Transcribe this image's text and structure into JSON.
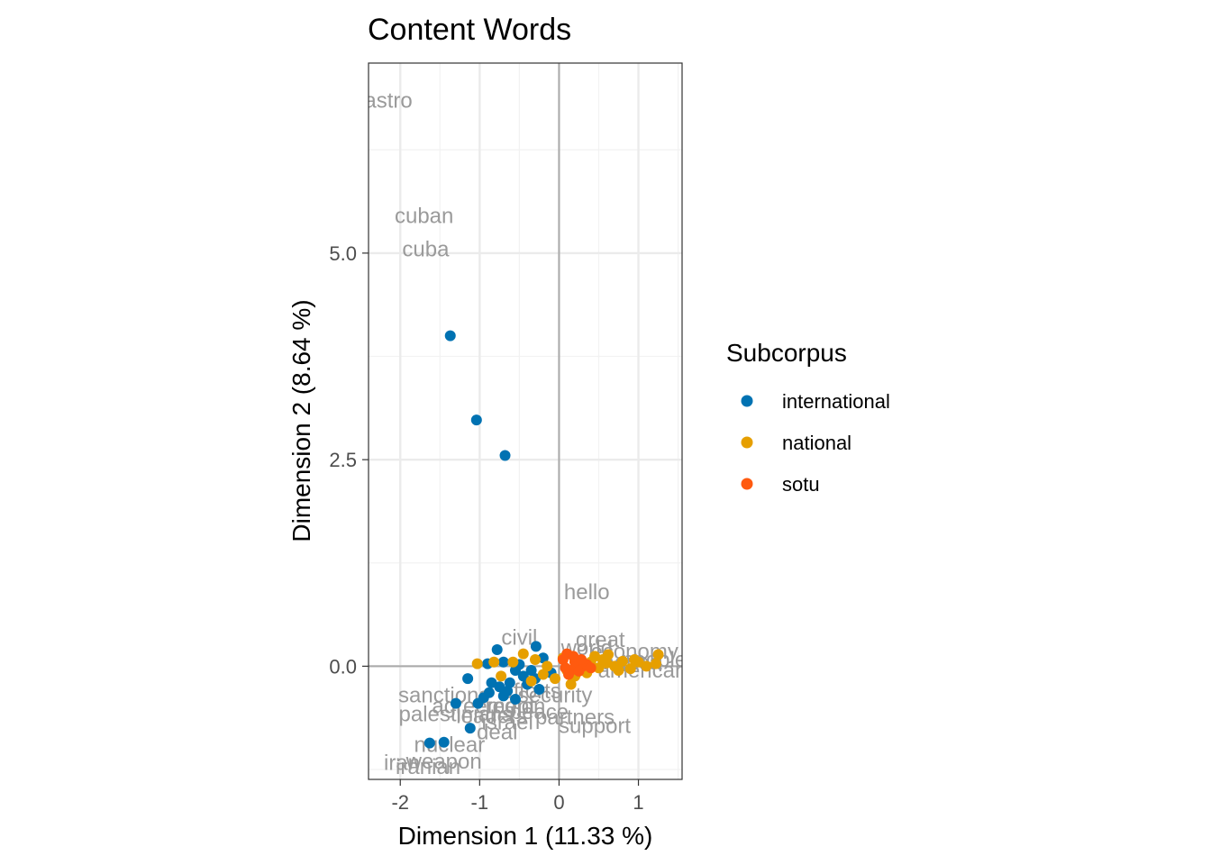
{
  "chart_data": {
    "type": "scatter",
    "title": "Content Words",
    "xlabel": "Dimension 1 (11.33 %)",
    "ylabel": "Dimension 2 (8.64 %)",
    "xlim": [
      -2.4,
      1.55
    ],
    "ylim": [
      -1.37,
      7.3
    ],
    "x_ticks": [
      -2,
      -1,
      0,
      1
    ],
    "x_tick_labels": [
      "-2",
      "-1",
      "0",
      "1"
    ],
    "y_ticks": [
      0.0,
      2.5,
      5.0
    ],
    "y_tick_labels": [
      "0.0",
      "2.5",
      "5.0"
    ],
    "reference_lines": {
      "x": 0,
      "y": 0
    },
    "grid": true,
    "theme": "bw",
    "legend": {
      "title": "Subcorpus",
      "position": "right",
      "entries": [
        "international",
        "national",
        "sotu"
      ]
    },
    "colors": {
      "international": "#0072B2",
      "national": "#E69F00",
      "sotu": "#FF5A0F"
    },
    "series": [
      {
        "name": "international",
        "points": [
          [
            -1.37,
            4.0
          ],
          [
            -1.04,
            2.98
          ],
          [
            -0.68,
            2.55
          ],
          [
            -0.78,
            0.2
          ],
          [
            -0.29,
            0.24
          ],
          [
            -0.9,
            0.03
          ],
          [
            -0.7,
            0.05
          ],
          [
            -0.5,
            0.02
          ],
          [
            -0.35,
            -0.05
          ],
          [
            -1.15,
            -0.15
          ],
          [
            -0.62,
            -0.2
          ],
          [
            -0.25,
            -0.28
          ],
          [
            -0.88,
            -0.32
          ],
          [
            -0.7,
            -0.36
          ],
          [
            -0.55,
            -0.4
          ],
          [
            -0.45,
            -0.12
          ],
          [
            -0.95,
            -0.38
          ],
          [
            -1.3,
            -0.45
          ],
          [
            -1.02,
            -0.45
          ],
          [
            -0.75,
            -0.25
          ],
          [
            -0.65,
            -0.3
          ],
          [
            -0.4,
            -0.22
          ],
          [
            -0.2,
            0.1
          ],
          [
            -0.1,
            -0.08
          ],
          [
            -0.55,
            -0.05
          ],
          [
            -1.12,
            -0.75
          ],
          [
            -1.45,
            -0.92
          ],
          [
            -1.63,
            -0.93
          ],
          [
            -0.85,
            -0.2
          ],
          [
            -0.3,
            -0.15
          ]
        ]
      },
      {
        "name": "national",
        "points": [
          [
            -1.03,
            0.03
          ],
          [
            -0.82,
            0.05
          ],
          [
            -0.45,
            0.15
          ],
          [
            -0.58,
            0.05
          ],
          [
            -0.3,
            0.08
          ],
          [
            -0.15,
            0.0
          ],
          [
            0.05,
            0.1
          ],
          [
            0.1,
            -0.05
          ],
          [
            0.2,
            0.05
          ],
          [
            0.3,
            0.0
          ],
          [
            0.4,
            0.05
          ],
          [
            0.5,
            -0.02
          ],
          [
            0.6,
            0.04
          ],
          [
            0.7,
            0.0
          ],
          [
            0.8,
            0.06
          ],
          [
            0.9,
            -0.03
          ],
          [
            1.0,
            0.05
          ],
          [
            1.1,
            0.0
          ],
          [
            1.22,
            0.03
          ],
          [
            1.25,
            0.14
          ],
          [
            0.62,
            0.14
          ],
          [
            0.15,
            -0.22
          ],
          [
            0.2,
            -0.12
          ],
          [
            -0.2,
            -0.1
          ],
          [
            -0.35,
            -0.18
          ],
          [
            -0.73,
            -0.12
          ],
          [
            -0.05,
            -0.15
          ],
          [
            0.35,
            -0.08
          ],
          [
            0.55,
            0.08
          ],
          [
            0.75,
            -0.05
          ],
          [
            0.95,
            0.08
          ],
          [
            0.45,
            0.12
          ]
        ]
      },
      {
        "name": "sotu",
        "points": [
          [
            0.1,
            0.15
          ],
          [
            0.2,
            0.05
          ],
          [
            0.3,
            0.0
          ],
          [
            0.15,
            -0.05
          ],
          [
            0.12,
            -0.1
          ],
          [
            0.25,
            -0.06
          ],
          [
            0.35,
            0.02
          ],
          [
            0.05,
            0.08
          ],
          [
            0.18,
            0.12
          ],
          [
            0.4,
            -0.02
          ],
          [
            0.08,
            -0.02
          ],
          [
            0.28,
            0.08
          ]
        ]
      }
    ],
    "word_labels": [
      {
        "text": "astro",
        "x": -2.15,
        "y": 6.85
      },
      {
        "text": "cuban",
        "x": -1.7,
        "y": 5.45
      },
      {
        "text": "cuba",
        "x": -1.68,
        "y": 5.05
      },
      {
        "text": "hello",
        "x": 0.35,
        "y": 0.9
      },
      {
        "text": "civil",
        "x": -0.5,
        "y": 0.35
      },
      {
        "text": "great",
        "x": 0.52,
        "y": 0.32
      },
      {
        "text": "sanctions",
        "x": -1.45,
        "y": -0.35
      },
      {
        "text": "palestinians",
        "x": -1.3,
        "y": -0.58
      },
      {
        "text": "deal",
        "x": -0.78,
        "y": -0.8
      },
      {
        "text": "nuclear",
        "x": -1.38,
        "y": -0.95
      },
      {
        "text": "weapon",
        "x": -1.45,
        "y": -1.15
      },
      {
        "text": "iran",
        "x": -1.98,
        "y": -1.17
      },
      {
        "text": "iranian",
        "x": -1.65,
        "y": -1.22
      },
      {
        "text": "world",
        "x": 0.35,
        "y": 0.22
      },
      {
        "text": "economy",
        "x": 0.95,
        "y": 0.18
      },
      {
        "text": "people",
        "x": 1.2,
        "y": 0.08
      },
      {
        "text": "america",
        "x": 0.8,
        "y": 0.05
      },
      {
        "text": "american",
        "x": 1.05,
        "y": -0.05
      },
      {
        "text": "security",
        "x": -0.05,
        "y": -0.35
      },
      {
        "text": "partners",
        "x": 0.2,
        "y": -0.62
      },
      {
        "text": "region",
        "x": -0.55,
        "y": -0.48
      },
      {
        "text": "peace",
        "x": -0.25,
        "y": -0.55
      },
      {
        "text": "support",
        "x": 0.45,
        "y": -0.72
      },
      {
        "text": "leaders",
        "x": -0.85,
        "y": -0.6
      },
      {
        "text": "efforts",
        "x": -0.35,
        "y": -0.3
      },
      {
        "text": "agreement",
        "x": -0.95,
        "y": -0.48
      },
      {
        "text": "israel",
        "x": -0.65,
        "y": -0.68
      }
    ]
  }
}
